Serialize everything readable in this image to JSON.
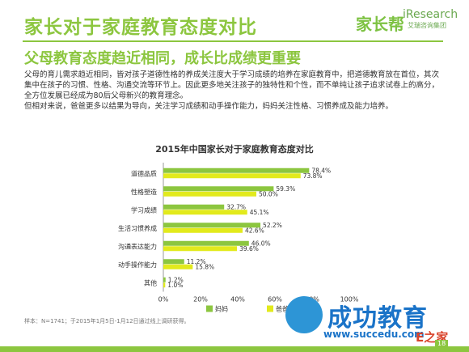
{
  "header": {
    "title": "家长对于家庭教育态度对比",
    "subtitle": "父母教育态度趋近相同，成长比成绩更重要",
    "logo_jzb": "家长帮",
    "logo_ir": "iResearch",
    "logo_ir_sub": "艾瑞咨询集团"
  },
  "body_text": {
    "p1": "父母的育儿需求趋近相同，皆对孩子道德性格的养成关注度大于学习成绩的培养在家庭教育中，把道德教育放在首位，其次集中在孩子的习惯、性格、沟通交流等环节上。因此更多地关注孩子的独特性和个性，而不单纯让孩子追求试卷上的高分，全方位发展已经成为80后父母新兴的教育理念。",
    "p2": "但相对来说，爸爸更多以结果为导向，关注学习成绩和动手操作能力，妈妈关注性格、习惯养成及能力培养。"
  },
  "chart_data": {
    "type": "bar",
    "orientation": "horizontal",
    "title": "2015年中国家长对于家庭教育态度对比",
    "categories": [
      "道德品质",
      "性格塑造",
      "学习成绩",
      "生活习惯养成",
      "沟通表达能力",
      "动手操作能力",
      "其他"
    ],
    "series": [
      {
        "name": "妈妈",
        "color": "#8cc63f",
        "values": [
          78.4,
          59.3,
          32.7,
          52.2,
          46.0,
          11.2,
          1.2
        ],
        "labels": [
          "78.4%",
          "59.3%",
          "32.7%",
          "52.2%",
          "46.0%",
          "11.2%",
          "1.2%"
        ]
      },
      {
        "name": "爸爸",
        "color": "#e2ea1c",
        "values": [
          73.8,
          50.0,
          45.1,
          42.6,
          39.6,
          15.8,
          1.0
        ],
        "labels": [
          "73.8%",
          "50.0%",
          "45.1%",
          "42.6%",
          "39.6%",
          "15.8%",
          "1.0%"
        ]
      }
    ],
    "xlim": [
      0,
      100
    ],
    "xticks": [
      "0%",
      "20%",
      "40%",
      "60%",
      "80%",
      "100%"
    ],
    "legend": "bottom",
    "grid": false
  },
  "footer": {
    "note": "样本：N=1741；于2015年1月5日-1月12日通过线上调研获得。",
    "page": "18",
    "watermark": "成功教育",
    "watermark_url": "www.succedu.com",
    "corner": "E之家"
  }
}
